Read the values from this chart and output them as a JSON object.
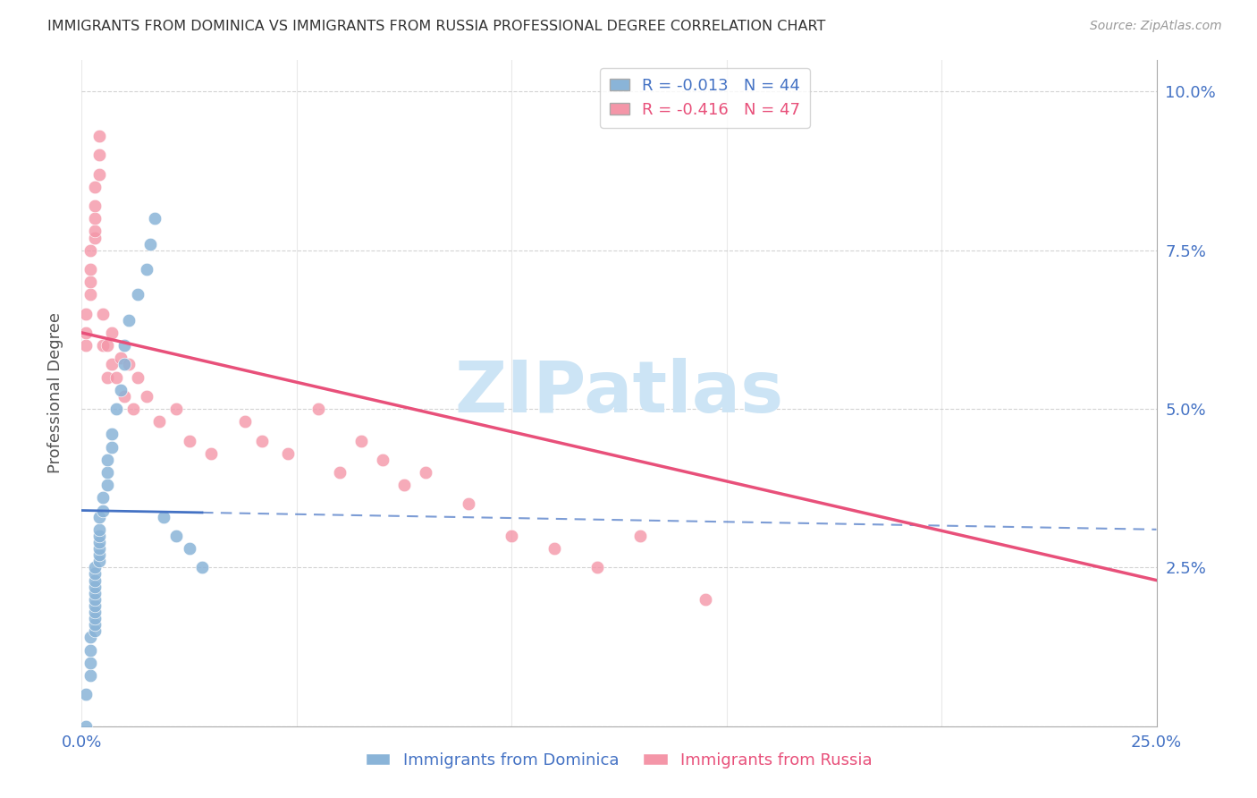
{
  "title": "IMMIGRANTS FROM DOMINICA VS IMMIGRANTS FROM RUSSIA PROFESSIONAL DEGREE CORRELATION CHART",
  "source": "Source: ZipAtlas.com",
  "ylabel_label": "Professional Degree",
  "xmin": 0.0,
  "xmax": 0.25,
  "ymin": 0.0,
  "ymax": 0.105,
  "xlabel_ticks": [
    0.0,
    0.05,
    0.1,
    0.15,
    0.2,
    0.25
  ],
  "ylabel_ticks": [
    0.0,
    0.025,
    0.05,
    0.075,
    0.1
  ],
  "ylabel_labels": [
    "",
    "2.5%",
    "5.0%",
    "7.5%",
    "10.0%"
  ],
  "legend_r_label1": "R = -0.013   N = 44",
  "legend_r_label2": "R = -0.416   N = 47",
  "dominica_color": "#8ab4d8",
  "russia_color": "#f496a8",
  "dominica_trendline_color": "#4472c4",
  "russia_trendline_color": "#e8507a",
  "grid_color": "#c8c8c8",
  "axis_label_color": "#4472c4",
  "watermark_text": "ZIPatlas",
  "watermark_color": "#cce4f5",
  "dominica_x": [
    0.001,
    0.001,
    0.002,
    0.002,
    0.002,
    0.002,
    0.003,
    0.003,
    0.003,
    0.003,
    0.003,
    0.003,
    0.003,
    0.003,
    0.003,
    0.003,
    0.003,
    0.004,
    0.004,
    0.004,
    0.004,
    0.004,
    0.004,
    0.004,
    0.005,
    0.005,
    0.006,
    0.006,
    0.006,
    0.007,
    0.007,
    0.008,
    0.009,
    0.01,
    0.01,
    0.011,
    0.013,
    0.015,
    0.016,
    0.017,
    0.019,
    0.022,
    0.025,
    0.028
  ],
  "dominica_y": [
    0.0,
    0.005,
    0.008,
    0.01,
    0.012,
    0.014,
    0.015,
    0.016,
    0.017,
    0.018,
    0.019,
    0.02,
    0.021,
    0.022,
    0.023,
    0.024,
    0.025,
    0.026,
    0.027,
    0.028,
    0.029,
    0.03,
    0.031,
    0.033,
    0.034,
    0.036,
    0.038,
    0.04,
    0.042,
    0.044,
    0.046,
    0.05,
    0.053,
    0.057,
    0.06,
    0.064,
    0.068,
    0.072,
    0.076,
    0.08,
    0.033,
    0.03,
    0.028,
    0.025
  ],
  "russia_x": [
    0.001,
    0.001,
    0.001,
    0.002,
    0.002,
    0.002,
    0.002,
    0.003,
    0.003,
    0.003,
    0.003,
    0.003,
    0.004,
    0.004,
    0.004,
    0.005,
    0.005,
    0.006,
    0.006,
    0.007,
    0.007,
    0.008,
    0.009,
    0.01,
    0.011,
    0.012,
    0.013,
    0.015,
    0.018,
    0.022,
    0.025,
    0.03,
    0.038,
    0.042,
    0.048,
    0.055,
    0.06,
    0.065,
    0.07,
    0.075,
    0.08,
    0.09,
    0.1,
    0.11,
    0.12,
    0.13,
    0.145
  ],
  "russia_y": [
    0.06,
    0.062,
    0.065,
    0.068,
    0.07,
    0.072,
    0.075,
    0.077,
    0.078,
    0.08,
    0.082,
    0.085,
    0.087,
    0.09,
    0.093,
    0.06,
    0.065,
    0.055,
    0.06,
    0.057,
    0.062,
    0.055,
    0.058,
    0.052,
    0.057,
    0.05,
    0.055,
    0.052,
    0.048,
    0.05,
    0.045,
    0.043,
    0.048,
    0.045,
    0.043,
    0.05,
    0.04,
    0.045,
    0.042,
    0.038,
    0.04,
    0.035,
    0.03,
    0.028,
    0.025,
    0.03,
    0.02
  ],
  "trendline_dom_x0": 0.0,
  "trendline_dom_x1": 0.25,
  "trendline_dom_y0": 0.034,
  "trendline_dom_y1": 0.031,
  "trendline_dom_solid_x1": 0.028,
  "trendline_rus_x0": 0.0,
  "trendline_rus_x1": 0.25,
  "trendline_rus_y0": 0.062,
  "trendline_rus_y1": 0.023
}
